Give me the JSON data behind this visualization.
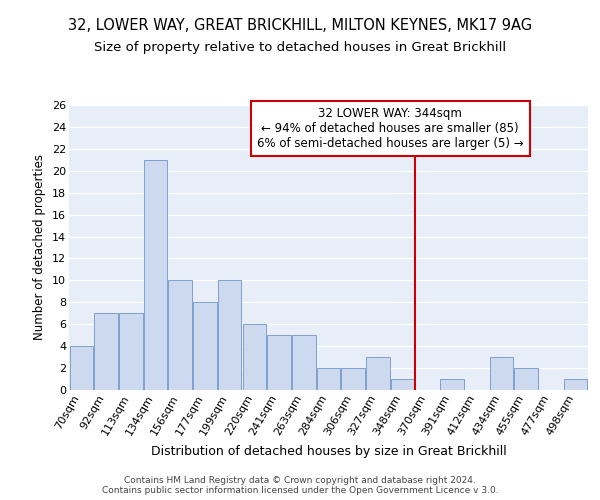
{
  "title1": "32, LOWER WAY, GREAT BRICKHILL, MILTON KEYNES, MK17 9AG",
  "title2": "Size of property relative to detached houses in Great Brickhill",
  "xlabel": "Distribution of detached houses by size in Great Brickhill",
  "ylabel": "Number of detached properties",
  "categories": [
    "70sqm",
    "92sqm",
    "113sqm",
    "134sqm",
    "156sqm",
    "177sqm",
    "199sqm",
    "220sqm",
    "241sqm",
    "263sqm",
    "284sqm",
    "306sqm",
    "327sqm",
    "348sqm",
    "370sqm",
    "391sqm",
    "412sqm",
    "434sqm",
    "455sqm",
    "477sqm",
    "498sqm"
  ],
  "values": [
    4,
    7,
    7,
    21,
    10,
    8,
    10,
    6,
    5,
    5,
    2,
    2,
    3,
    1,
    0,
    1,
    0,
    3,
    2,
    0,
    1
  ],
  "bar_color": "#ccd9ee",
  "bar_edge_color": "#7096c8",
  "background_color": "#e8eef7",
  "vline_x_index": 13.5,
  "vline_color": "#cc0000",
  "annotation_text": "32 LOWER WAY: 344sqm\n← 94% of detached houses are smaller (85)\n6% of semi-detached houses are larger (5) →",
  "annotation_box_color": "#ffffff",
  "annotation_box_edge": "#cc0000",
  "footer_text": "Contains HM Land Registry data © Crown copyright and database right 2024.\nContains public sector information licensed under the Open Government Licence v 3.0.",
  "ylim": [
    0,
    26
  ],
  "yticks": [
    0,
    2,
    4,
    6,
    8,
    10,
    12,
    14,
    16,
    18,
    20,
    22,
    24,
    26
  ],
  "title1_fontsize": 10.5,
  "title2_fontsize": 9.5,
  "xlabel_fontsize": 9,
  "ylabel_fontsize": 8.5,
  "tick_fontsize": 8,
  "annotation_fontsize": 8.5,
  "footer_fontsize": 6.5
}
